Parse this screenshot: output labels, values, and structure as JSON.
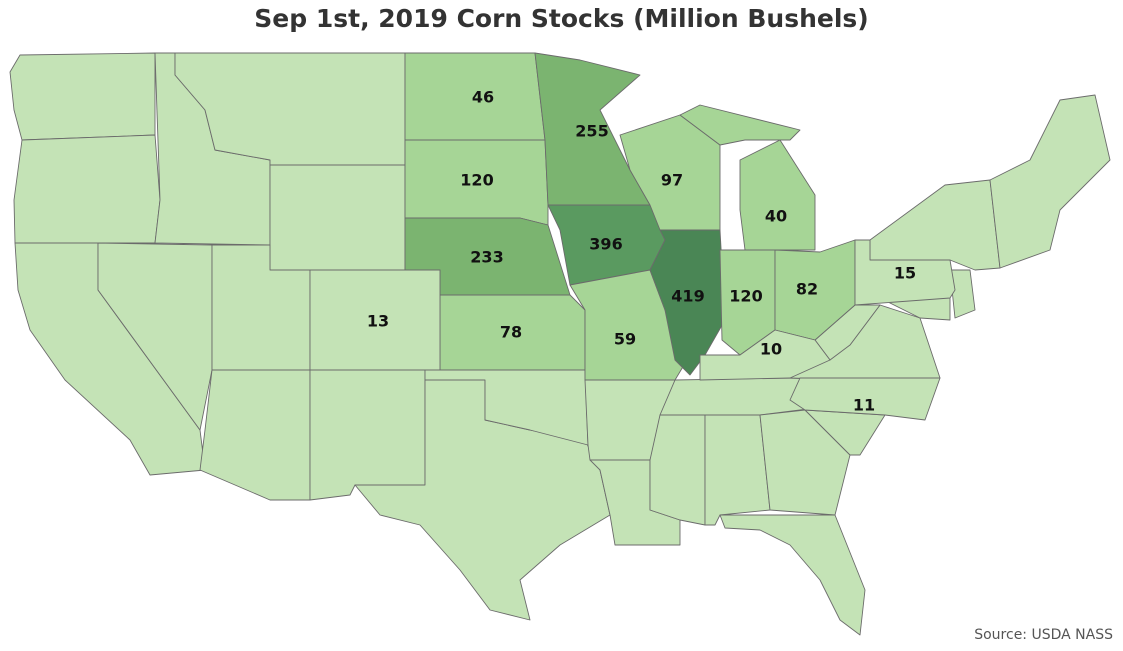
{
  "title": "Sep 1st, 2019 Corn Stocks (Million Bushels)",
  "source": "Source: USDA NASS",
  "colors": {
    "base": "#c4e3b6",
    "low": "#a6d596",
    "mid": "#7bb470",
    "high": "#5a9a60",
    "top": "#4a8655",
    "border": "#6b6b6b"
  },
  "chart_data": {
    "type": "choropleth",
    "states": [
      {
        "state": "ND",
        "value": 46
      },
      {
        "state": "MN",
        "value": 255
      },
      {
        "state": "SD",
        "value": 120
      },
      {
        "state": "WI",
        "value": 97
      },
      {
        "state": "MI",
        "value": 40
      },
      {
        "state": "NE",
        "value": 233
      },
      {
        "state": "IA",
        "value": 396
      },
      {
        "state": "IL",
        "value": 419
      },
      {
        "state": "IN",
        "value": 120
      },
      {
        "state": "OH",
        "value": 82
      },
      {
        "state": "PA",
        "value": 15
      },
      {
        "state": "CO",
        "value": 13
      },
      {
        "state": "KS",
        "value": 78
      },
      {
        "state": "MO",
        "value": 59
      },
      {
        "state": "KY",
        "value": 10
      },
      {
        "state": "NC",
        "value": 11
      }
    ]
  }
}
